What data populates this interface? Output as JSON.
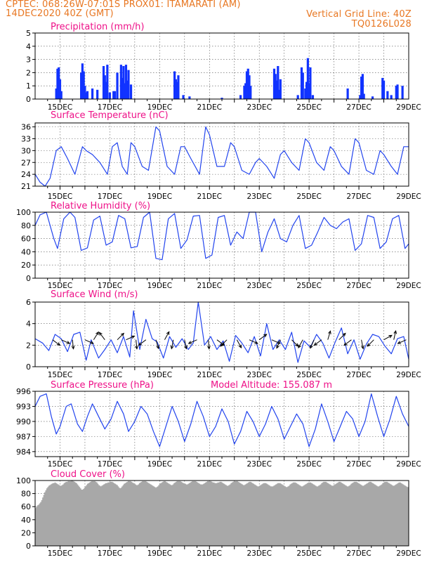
{
  "header": {
    "line1": "CPTEC:   068:26W-07:01S   PROX01: ITAMARATI (AM)",
    "date": "14DEC2020 40Z (GMT)",
    "grid_note": "Vertical Grid Line: 40Z",
    "code": "TQ0126L028"
  },
  "colors": {
    "header": "#e87722",
    "title": "#ee1188",
    "series": "#2244ee",
    "precip_bar": "#1133ff",
    "cloud_bar": "#a8a8a8",
    "axis": "#000000"
  },
  "x_tick_labels": [
    "15DEC",
    "17DEC",
    "19DEC",
    "21DEC",
    "23DEC",
    "25DEC",
    "27DEC",
    "29DEC"
  ],
  "chart_data": [
    {
      "id": "precip",
      "type": "bar",
      "title": "Precipitation (mm/h)",
      "ylim": [
        0,
        5
      ],
      "yticks": [
        0,
        1,
        2,
        3,
        4,
        5
      ],
      "x_days": [
        0.85,
        0.9,
        0.95,
        1.0,
        1.05,
        1.85,
        1.9,
        1.95,
        2.0,
        2.05,
        2.1,
        2.3,
        2.5,
        2.75,
        2.8,
        2.85,
        2.9,
        3.0,
        3.15,
        3.2,
        3.3,
        3.45,
        3.5,
        3.55,
        3.6,
        3.65,
        3.7,
        3.75,
        3.85,
        5.6,
        5.65,
        5.7,
        5.75,
        5.95,
        6.2,
        7.5,
        8.25,
        8.4,
        8.45,
        8.5,
        8.55,
        8.6,
        8.65,
        9.6,
        9.65,
        9.7,
        9.75,
        9.8,
        9.85,
        10.55,
        10.7,
        10.75,
        10.85,
        10.9,
        10.95,
        11.0,
        11.05,
        11.15,
        12.55,
        13.05,
        13.1,
        13.15,
        13.2,
        13.55,
        13.95,
        14.0,
        14.15,
        14.3,
        14.5,
        14.55,
        14.75
      ],
      "values": [
        0.8,
        2.3,
        2.4,
        1.5,
        0.6,
        2.0,
        2.7,
        2.1,
        1.0,
        0.5,
        0.6,
        0.8,
        0.7,
        2.5,
        1.8,
        1.3,
        2.6,
        0.5,
        0.6,
        0.6,
        2.0,
        2.6,
        1.6,
        2.5,
        1.2,
        2.6,
        1.4,
        2.2,
        1.1,
        2.1,
        1.5,
        1.3,
        1.8,
        0.3,
        0.2,
        0.1,
        0.3,
        1.0,
        1.2,
        2.1,
        2.3,
        1.8,
        1.0,
        2.3,
        1.9,
        1.4,
        2.5,
        0.7,
        1.5,
        0.3,
        2.4,
        2.0,
        0.8,
        1.3,
        3.1,
        1.2,
        2.4,
        0.3,
        0.8,
        0.3,
        1.7,
        1.9,
        0.4,
        0.2,
        1.6,
        1.4,
        0.6,
        0.3,
        1.0,
        1.1,
        1.0
      ]
    },
    {
      "id": "temp",
      "type": "line",
      "title": "Surface Temperature (nC)",
      "ylim": [
        21,
        37
      ],
      "yticks": [
        21,
        24,
        27,
        30,
        33,
        36
      ],
      "x_days": [
        0.0,
        0.2,
        0.4,
        0.6,
        0.85,
        1.05,
        1.3,
        1.6,
        1.9,
        2.05,
        2.3,
        2.6,
        2.9,
        3.1,
        3.3,
        3.5,
        3.7,
        3.85,
        4.0,
        4.3,
        4.55,
        4.85,
        5.0,
        5.3,
        5.6,
        5.85,
        6.0,
        6.25,
        6.6,
        6.85,
        7.0,
        7.3,
        7.6,
        7.85,
        8.0,
        8.3,
        8.6,
        8.85,
        9.0,
        9.3,
        9.6,
        9.85,
        10.0,
        10.3,
        10.6,
        10.85,
        11.0,
        11.3,
        11.6,
        11.85,
        12.0,
        12.3,
        12.6,
        12.85,
        13.0,
        13.3,
        13.6,
        13.85,
        14.0,
        14.3,
        14.55,
        14.8,
        15.0
      ],
      "values": [
        24,
        22,
        21,
        23,
        30,
        31,
        28,
        24,
        31,
        30,
        29,
        27,
        24,
        31,
        32,
        26,
        24,
        32,
        31,
        26,
        25,
        36,
        35,
        26,
        24,
        31,
        31,
        28,
        24,
        36,
        34,
        26,
        26,
        32,
        31,
        25,
        24,
        27,
        28,
        26,
        23,
        29,
        30,
        27,
        25,
        33,
        32,
        27,
        25,
        31,
        30,
        26,
        24,
        33,
        32,
        25,
        24,
        30,
        29,
        26,
        24,
        31,
        31
      ]
    },
    {
      "id": "rh",
      "type": "line",
      "title": "Relative Humidity (%)",
      "ylim": [
        0,
        100
      ],
      "yticks": [
        0,
        20,
        40,
        60,
        80,
        100
      ],
      "x_days": [
        0.0,
        0.2,
        0.45,
        0.75,
        0.9,
        1.15,
        1.4,
        1.6,
        1.85,
        2.1,
        2.35,
        2.6,
        2.85,
        3.1,
        3.35,
        3.6,
        3.85,
        4.1,
        4.35,
        4.6,
        4.85,
        5.1,
        5.35,
        5.6,
        5.85,
        6.1,
        6.35,
        6.6,
        6.85,
        7.1,
        7.35,
        7.6,
        7.85,
        8.1,
        8.35,
        8.6,
        8.85,
        9.1,
        9.35,
        9.6,
        9.85,
        10.1,
        10.35,
        10.6,
        10.85,
        11.1,
        11.35,
        11.6,
        11.85,
        12.1,
        12.35,
        12.6,
        12.85,
        13.1,
        13.35,
        13.6,
        13.85,
        14.1,
        14.35,
        14.6,
        14.85,
        15.0
      ],
      "values": [
        80,
        96,
        100,
        60,
        45,
        90,
        100,
        92,
        42,
        46,
        88,
        94,
        50,
        55,
        95,
        90,
        46,
        48,
        92,
        100,
        30,
        28,
        90,
        98,
        45,
        58,
        94,
        95,
        30,
        35,
        92,
        95,
        50,
        70,
        60,
        100,
        100,
        40,
        70,
        90,
        60,
        55,
        80,
        95,
        45,
        50,
        70,
        92,
        80,
        75,
        85,
        90,
        42,
        52,
        95,
        92,
        45,
        55,
        90,
        95,
        45,
        52
      ]
    },
    {
      "id": "wind",
      "type": "line",
      "title": "Surface Wind (m/s)",
      "ylim": [
        0,
        6
      ],
      "yticks": [
        0,
        2,
        4,
        6
      ],
      "x_days": [
        0.0,
        0.3,
        0.55,
        0.8,
        1.05,
        1.3,
        1.55,
        1.8,
        2.05,
        2.25,
        2.55,
        2.8,
        3.05,
        3.3,
        3.55,
        3.8,
        3.95,
        4.2,
        4.45,
        4.7,
        4.9,
        5.15,
        5.4,
        5.65,
        5.9,
        6.15,
        6.35,
        6.55,
        6.8,
        7.05,
        7.3,
        7.55,
        7.8,
        8.05,
        8.3,
        8.55,
        8.8,
        9.05,
        9.3,
        9.55,
        9.8,
        10.05,
        10.3,
        10.55,
        10.8,
        11.05,
        11.3,
        11.55,
        11.8,
        12.05,
        12.3,
        12.55,
        12.8,
        13.05,
        13.3,
        13.55,
        13.8,
        14.05,
        14.3,
        14.55,
        14.8,
        15.0
      ],
      "values": [
        2.6,
        2.2,
        1.5,
        3.0,
        2.6,
        1.4,
        3.0,
        3.2,
        0.6,
        2.5,
        0.8,
        1.6,
        2.5,
        1.3,
        2.8,
        0.9,
        5.2,
        1.6,
        4.4,
        2.6,
        2.3,
        0.8,
        2.8,
        1.8,
        2.6,
        1.6,
        2.2,
        6.0,
        2.0,
        2.8,
        1.6,
        2.4,
        0.5,
        2.9,
        2.2,
        1.3,
        2.8,
        1.0,
        4.0,
        1.6,
        2.5,
        1.6,
        3.2,
        0.4,
        2.4,
        1.8,
        3.0,
        2.2,
        0.8,
        2.3,
        3.6,
        1.2,
        2.5,
        0.7,
        2.1,
        3.0,
        2.8,
        1.9,
        1.2,
        2.6,
        2.8,
        0.7
      ],
      "arrows": {
        "x_days": [
          0.7,
          1.05,
          1.5,
          2.0,
          2.35,
          2.8,
          3.3,
          3.65,
          4.05,
          4.45,
          4.85,
          5.2,
          5.55,
          6.0,
          6.5,
          6.95,
          7.3,
          7.7,
          8.1,
          8.6,
          9.0,
          9.5,
          9.85,
          10.3,
          10.75,
          11.2,
          11.5,
          11.75,
          12.2,
          12.7,
          13.1,
          13.6,
          14.0,
          14.4,
          14.9
        ],
        "u": [
          0.8,
          0.9,
          0.1,
          0.9,
          0.5,
          -0.6,
          0.7,
          0.9,
          0.1,
          -0.8,
          0.3,
          0.5,
          -0.2,
          0.2,
          -0.9,
          0.1,
          0.8,
          -0.7,
          0.5,
          0.9,
          0.8,
          0.9,
          -0.4,
          0.7,
          -0.5,
          -0.4,
          -0.8,
          0.3,
          0.7,
          -0.8,
          0.2,
          -0.7,
          0.9,
          0.2,
          -0.9
        ],
        "v": [
          -0.6,
          -0.4,
          -1.0,
          -0.4,
          0.8,
          0.8,
          0.7,
          0.4,
          -1.0,
          -0.6,
          -1.0,
          0.9,
          -1.0,
          -1.0,
          -0.4,
          -1.0,
          -0.6,
          -0.7,
          -0.9,
          -0.4,
          0.6,
          -0.4,
          -0.9,
          -0.7,
          -0.9,
          -0.9,
          -0.6,
          1.0,
          0.7,
          -0.6,
          -1.0,
          -0.7,
          0.5,
          0.9,
          -0.4
        ]
      }
    },
    {
      "id": "pressure",
      "type": "line",
      "title": "Surface Pressure (hPa)",
      "annotation": "Model Altitude: 155.087 m",
      "ylim": [
        983,
        996
      ],
      "yticks": [
        984,
        987,
        990,
        993,
        996
      ],
      "x_days": [
        0.0,
        0.2,
        0.45,
        0.65,
        0.85,
        1.0,
        1.25,
        1.45,
        1.7,
        1.9,
        2.1,
        2.3,
        2.55,
        2.8,
        3.05,
        3.3,
        3.55,
        3.75,
        4.0,
        4.25,
        4.5,
        4.75,
        5.0,
        5.25,
        5.5,
        5.75,
        6.0,
        6.25,
        6.5,
        6.75,
        7.0,
        7.25,
        7.5,
        7.75,
        8.0,
        8.25,
        8.5,
        8.75,
        9.0,
        9.25,
        9.5,
        9.75,
        10.0,
        10.25,
        10.5,
        10.75,
        11.0,
        11.25,
        11.5,
        11.75,
        12.0,
        12.25,
        12.5,
        12.75,
        13.0,
        13.25,
        13.5,
        13.75,
        14.0,
        14.25,
        14.5,
        14.75,
        15.0
      ],
      "values": [
        993.0,
        995.0,
        995.5,
        991.0,
        987.5,
        989.0,
        993.0,
        993.5,
        989.5,
        988.0,
        991.0,
        993.5,
        991.0,
        988.5,
        990.5,
        994.0,
        991.5,
        988.0,
        990.0,
        993.0,
        991.5,
        988.0,
        985.0,
        989.0,
        993.0,
        990.0,
        986.0,
        989.5,
        994.0,
        991.0,
        987.0,
        989.0,
        992.5,
        990.0,
        985.5,
        988.0,
        992.0,
        990.0,
        987.0,
        989.5,
        993.0,
        990.5,
        986.5,
        989.0,
        991.5,
        989.5,
        985.0,
        988.5,
        993.5,
        990.0,
        986.0,
        989.0,
        992.0,
        990.5,
        987.0,
        990.0,
        995.5,
        991.0,
        987.0,
        990.5,
        995.0,
        991.5,
        989.0
      ]
    },
    {
      "id": "cloud",
      "type": "bar",
      "title": "Cloud Cover (%)",
      "ylim": [
        0,
        100
      ],
      "yticks": [
        0,
        20,
        40,
        60,
        80,
        100
      ],
      "values_hourly": [
        58,
        60,
        62,
        63,
        65,
        67,
        70,
        74,
        78,
        82,
        85,
        88,
        90,
        92,
        93,
        94,
        95,
        96,
        96,
        97,
        96,
        95,
        94,
        93,
        92,
        92,
        93,
        94,
        96,
        97,
        98,
        98,
        99,
        99,
        99,
        100,
        100,
        99,
        98,
        97,
        96,
        94,
        92,
        90,
        88,
        86,
        86,
        87,
        89,
        91,
        93,
        95,
        96,
        97,
        98,
        99,
        99,
        99,
        99,
        98,
        97,
        95,
        93,
        92,
        91,
        92,
        93,
        94,
        95,
        96,
        96,
        97,
        97,
        98,
        98,
        98,
        97,
        96,
        95,
        94,
        93,
        91,
        89,
        88,
        89,
        91,
        93,
        95,
        96,
        97,
        98,
        99,
        99,
        99,
        98,
        97,
        96,
        95,
        94,
        93,
        93,
        94,
        96,
        97,
        98,
        99,
        99,
        99,
        99,
        98,
        97,
        96,
        95,
        94,
        93,
        92,
        91,
        90,
        89,
        90,
        91,
        93,
        95,
        96,
        97,
        98,
        99,
        99,
        98,
        97,
        96,
        95,
        94,
        93,
        93,
        94,
        96,
        97,
        98,
        99,
        99,
        99,
        99,
        98,
        97,
        96,
        95,
        95,
        94,
        94,
        95,
        96,
        97,
        98,
        99,
        99,
        99,
        99,
        98,
        97,
        96,
        95,
        94,
        94,
        94,
        95,
        96,
        97,
        98,
        99,
        99,
        99,
        99,
        98,
        97,
        97,
        96,
        96,
        96,
        97,
        97,
        98,
        98,
        97,
        96,
        95,
        94,
        93,
        92,
        92,
        93,
        94,
        96,
        97,
        98,
        99,
        99,
        99,
        99,
        98,
        97,
        96,
        95,
        94,
        93,
        93,
        94,
        95,
        96,
        97,
        98,
        98,
        97,
        96,
        95,
        94,
        93,
        92,
        91,
        91,
        92,
        93,
        94,
        95,
        96,
        96,
        96,
        95,
        94,
        93,
        92,
        91,
        91,
        91,
        92,
        93,
        94,
        95,
        96,
        96,
        96,
        95,
        94,
        93,
        92,
        91,
        90,
        90,
        91,
        92,
        94,
        95,
        96,
        97,
        97,
        97,
        96,
        95,
        94,
        93,
        92,
        91,
        91,
        92,
        93,
        94,
        95,
        96,
        97,
        97,
        97,
        96,
        95,
        94,
        93,
        92,
        91,
        91,
        92,
        93,
        94,
        96,
        97,
        98,
        98,
        98,
        97,
        96,
        95,
        94,
        93,
        92,
        92,
        93,
        94,
        95,
        96,
        97,
        98,
        98,
        97,
        96,
        95,
        94,
        93,
        92,
        91,
        91,
        92,
        93,
        95,
        96,
        97,
        98,
        98,
        98,
        97,
        96,
        95,
        94,
        93,
        92,
        92,
        93,
        94,
        95,
        96,
        97,
        98,
        98,
        97,
        96,
        95,
        94,
        93,
        92,
        91,
        91,
        92,
        93,
        94,
        96,
        97,
        98,
        98,
        98,
        97,
        96,
        95,
        94,
        93,
        92,
        92,
        93,
        94,
        95,
        96,
        97,
        97,
        96,
        95,
        94,
        93,
        92,
        91,
        90,
        90
      ]
    }
  ]
}
